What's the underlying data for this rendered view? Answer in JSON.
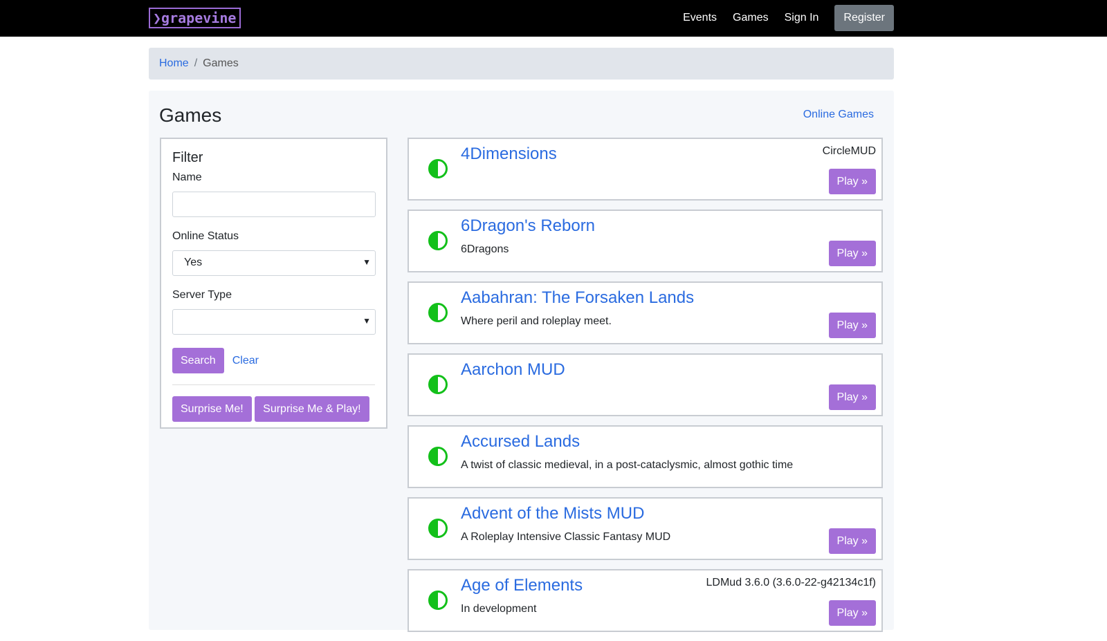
{
  "nav": {
    "logo": "❯grapevine",
    "links": [
      "Events",
      "Games",
      "Sign In"
    ],
    "register": "Register"
  },
  "breadcrumb": {
    "home": "Home",
    "current": "Games"
  },
  "page": {
    "title": "Games",
    "online_link": "Online Games"
  },
  "filter": {
    "title": "Filter",
    "name_label": "Name",
    "name_value": "",
    "status_label": "Online Status",
    "status_value": "Yes",
    "server_label": "Server Type",
    "server_value": "",
    "search": "Search",
    "clear": "Clear",
    "surprise": "Surprise Me!",
    "surprise_play": "Surprise Me & Play!"
  },
  "colors": {
    "accent": "#a46fd8",
    "link": "#2a6be0",
    "online": "#13c01a"
  },
  "play_label": "Play »",
  "games": [
    {
      "name": "4Dimensions",
      "desc": "",
      "server": "CircleMUD",
      "play": true
    },
    {
      "name": "6Dragon's Reborn",
      "desc": "6Dragons",
      "server": "",
      "play": true
    },
    {
      "name": "Aabahran: The Forsaken Lands",
      "desc": "Where peril and roleplay meet.",
      "server": "",
      "play": true
    },
    {
      "name": "Aarchon MUD",
      "desc": "",
      "server": "",
      "play": true
    },
    {
      "name": "Accursed Lands",
      "desc": "A twist of classic medieval, in a post-cataclysmic, almost gothic time",
      "server": "",
      "play": false
    },
    {
      "name": "Advent of the Mists MUD",
      "desc": "A Roleplay Intensive Classic Fantasy MUD",
      "server": "",
      "play": true
    },
    {
      "name": "Age of Elements",
      "desc": "In development",
      "server": "LDMud 3.6.0 (3.6.0-22-g42134c1f)",
      "play": true
    }
  ]
}
